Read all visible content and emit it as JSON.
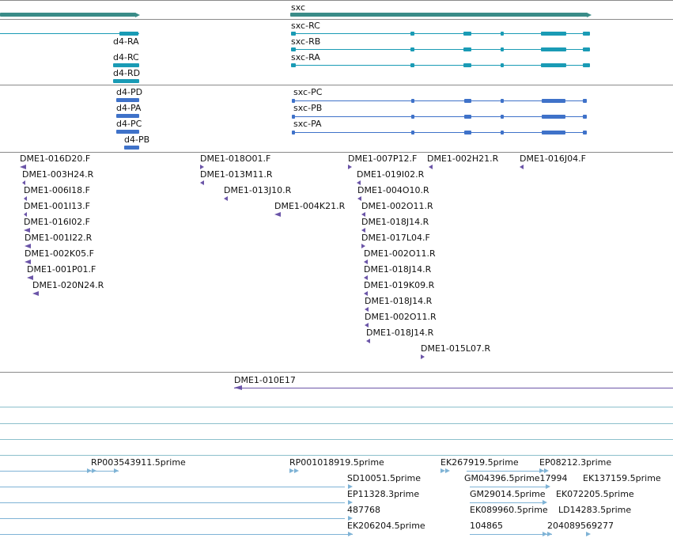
{
  "colors": {
    "separator": "#8a8a8a",
    "lightline": "#8cc0cc",
    "gene_top": "#3a8c88",
    "transcript": "#1a9bb5",
    "cds": "#3f72c9",
    "clone": "#6b55a8",
    "est": "#7fb3d6"
  },
  "gene_track": {
    "gene_label": "sxc"
  },
  "transcripts_top": {
    "d4": [
      "d4-RA",
      "d4-RC",
      "d4-RD"
    ],
    "sxc": [
      "sxc-RC",
      "sxc-RB",
      "sxc-RA"
    ]
  },
  "proteins": {
    "d4": [
      "d4-PD",
      "d4-PA",
      "d4-PC",
      "d4-PB"
    ],
    "sxc": [
      "sxc-PC",
      "sxc-PB",
      "sxc-PA"
    ]
  },
  "clones": [
    "DME1-016D20.F",
    "DME1-003H24.R",
    "DME1-006I18.F",
    "DME1-001I13.F",
    "DME1-016I02.F",
    "DME1-001I22.R",
    "DME1-002K05.F",
    "DME1-001P01.F",
    "DME1-020N24.R",
    "DME1-018O01.F",
    "DME1-013M11.R",
    "DME1-013J10.R",
    "DME1-004K21.R",
    "DME1-007P12.F",
    "DME1-002H21.R",
    "DME1-016J04.F",
    "DME1-019I02.R",
    "DME1-004O10.R",
    "DME1-002O11.R",
    "DME1-018J14.R",
    "DME1-017L04.F",
    "DME1-002O11.R",
    "DME1-018J14.R",
    "DME1-019K09.R",
    "DME1-018J14.R",
    "DME1-002O11.R",
    "DME1-018J14.R",
    "DME1-015L07.R"
  ],
  "bac": {
    "label": "DME1-010E17"
  },
  "ests": [
    "RP003543911.5prime",
    "RP001018919.5prime",
    "EK267919.5prime",
    "EP08212.3prime",
    "SD10051.5prime",
    "GM04396.5prime17994",
    "EK137159.5prime",
    "EP11328.3prime",
    "GM29014.5prime",
    "EK072205.5prime",
    "487768",
    "EK089960.5prime",
    "LD14283.5prime",
    "EK206204.5prime",
    "104865",
    "204089569277"
  ]
}
